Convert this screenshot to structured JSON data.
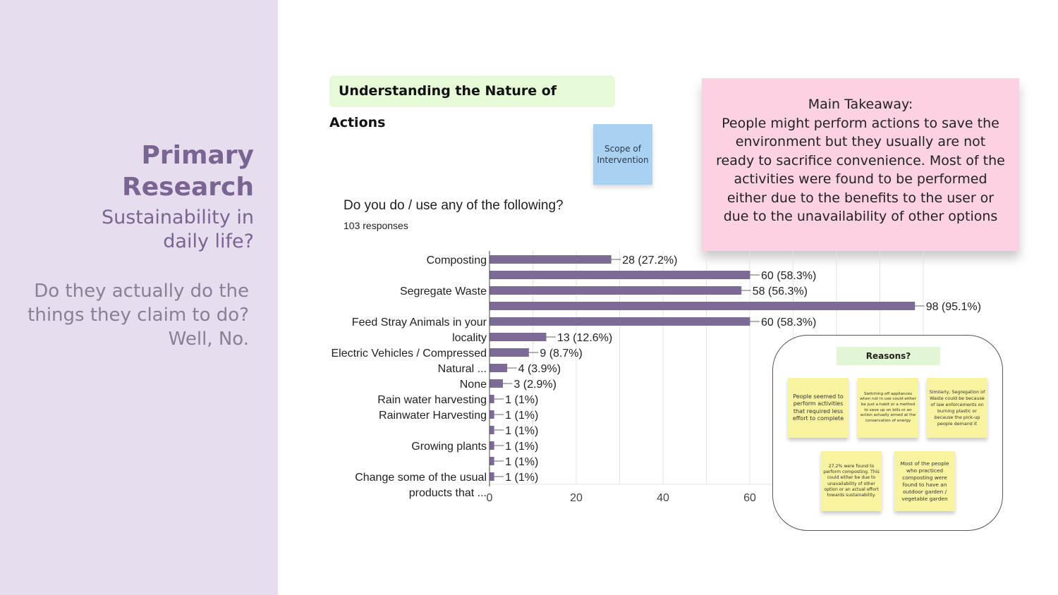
{
  "sidebar": {
    "title_line1": "Primary",
    "title_line2": "Research",
    "subtitle_line1": "Sustainability in",
    "subtitle_line2": "daily life?",
    "question_line1": "Do they actually do the",
    "question_line2": "things they claim to do?",
    "question_line3": "Well, No."
  },
  "section_title": "Understanding the Nature of Actions",
  "scope_note": "Scope of Intervention",
  "takeaway": {
    "heading": "Main Takeaway:",
    "body": "People might perform actions to save the environment but they usually are not ready to sacrifice convenience. Most of the activities were found to be performed either due to the benefits to the user or due to the unavailability of other options"
  },
  "reasons": {
    "title": "Reasons?",
    "notes": [
      "People seemed to perform activities that required less effort to complete",
      "Switching off appliances when not in use could either be just a habit or a method to save up on bills or an action actually aimed at the conservation of energy",
      "Similarly, Segregation of Waste could be because of law enforcements on burning plastic or because the pick-up people demand it",
      "27.2% were found to perform composting. This could either be due to unavailability of other option or an actual effort towards sustainability.",
      "Most of the people who practiced composting were found to have an outdoor garden / vegetable garden"
    ]
  },
  "colors": {
    "bar": "#7e6a96",
    "grid": "#e3e3e3",
    "axis": "#444444"
  },
  "chart_data": {
    "type": "bar",
    "orientation": "horizontal",
    "title": "Do you do / use any of the following?",
    "subtitle": "103 responses",
    "category_labels": [
      [
        "Composting"
      ],
      [],
      [
        "Segregate Waste"
      ],
      [],
      [
        "Feed Stray Animals in your",
        "locality"
      ],
      [],
      [
        "Electric Vehicles / Compressed",
        "Natural ..."
      ],
      [],
      [
        "None"
      ],
      [
        "Rain water harvesting"
      ],
      [
        "Rainwater Harvesting"
      ],
      [],
      [
        "Growing plants"
      ],
      [],
      [
        "Change some of the usual",
        "products that ..."
      ]
    ],
    "values": [
      28,
      60,
      58,
      98,
      60,
      13,
      9,
      4,
      3,
      1,
      1,
      1,
      1,
      1,
      1
    ],
    "value_labels": [
      "28 (27.2%)",
      "60 (58.3%)",
      "58 (56.3%)",
      "98 (95.1%)",
      "60 (58.3%)",
      "13 (12.6%)",
      "9 (8.7%)",
      "4 (3.9%)",
      "3 (2.9%)",
      "1 (1%)",
      "1 (1%)",
      "1 (1%)",
      "1 (1%)",
      "1 (1%)",
      "1 (1%)"
    ],
    "x_ticks": [
      "0",
      "20",
      "40",
      "60"
    ],
    "xlim": [
      0,
      100
    ]
  }
}
